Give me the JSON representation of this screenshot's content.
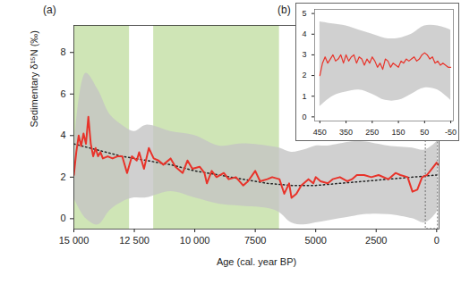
{
  "chart_data": [
    {
      "type": "line",
      "title": "(a)",
      "xlabel": "Age (cal. year BP)",
      "ylabel": "Sedimentary δ¹⁵N (‰)",
      "xlim": [
        15000,
        -100
      ],
      "ylim": [
        -0.5,
        9.3
      ],
      "xticks": [
        {
          "value": 15000,
          "label": "15 000"
        },
        {
          "value": 12500,
          "label": "12 500"
        },
        {
          "value": 10000,
          "label": "10 000"
        },
        {
          "value": 7500,
          "label": "7500"
        },
        {
          "value": 5000,
          "label": "5000"
        },
        {
          "value": 2500,
          "label": "2500"
        },
        {
          "value": 0,
          "label": "0"
        }
      ],
      "yticks": [
        0,
        2,
        4,
        6,
        8
      ],
      "shaded_regions": [
        {
          "x1": 15000,
          "x2": 12700,
          "color": "#cfe5b6"
        },
        {
          "x1": 11700,
          "x2": 6500,
          "color": "#cfe5b6"
        }
      ],
      "series": [
        {
          "type": "area",
          "color": "#c4c4c4",
          "x": [
            15000,
            14500,
            14000,
            13500,
            13000,
            12500,
            12000,
            11000,
            10000,
            9000,
            8000,
            7000,
            6500,
            6000,
            5500,
            5000,
            4500,
            4000,
            3500,
            3000,
            2000,
            1000,
            500,
            0,
            -50
          ],
          "upper": [
            3.2,
            7.0,
            6.2,
            5.0,
            4.5,
            4.2,
            4.5,
            4.2,
            4.0,
            3.5,
            3.6,
            3.5,
            3.4,
            3.2,
            3.3,
            3.5,
            3.5,
            3.6,
            3.7,
            3.7,
            3.5,
            3.4,
            3.3,
            3.7,
            3.8
          ],
          "lower": [
            1.0,
            0.0,
            -0.3,
            0.4,
            0.8,
            1.0,
            1.0,
            1.3,
            1.0,
            0.7,
            0.6,
            0.5,
            0.3,
            -0.2,
            -0.3,
            -0.2,
            -0.1,
            0.0,
            0.1,
            0.2,
            0.2,
            0.0,
            -0.2,
            0.3,
            0.5
          ]
        },
        {
          "type": "line",
          "color": "#222222",
          "line_style": "dotted",
          "x": [
            15000,
            14000,
            13000,
            12000,
            11000,
            10000,
            9000,
            8000,
            7000,
            6000,
            5000,
            4000,
            3000,
            2000,
            1000,
            0
          ],
          "values": [
            3.6,
            3.3,
            3.0,
            2.8,
            2.6,
            2.3,
            2.1,
            1.9,
            1.7,
            1.6,
            1.6,
            1.7,
            1.8,
            1.9,
            2.0,
            2.1
          ]
        },
        {
          "type": "line",
          "color": "#e8332a",
          "line_style": "solid",
          "x": [
            15000,
            14900,
            14800,
            14700,
            14600,
            14500,
            14400,
            14300,
            14200,
            14100,
            14000,
            13900,
            13800,
            13600,
            13400,
            13200,
            13000,
            12800,
            12600,
            12400,
            12300,
            12100,
            11900,
            11700,
            11500,
            11300,
            11000,
            10800,
            10500,
            10300,
            10100,
            9800,
            9600,
            9500,
            9300,
            9100,
            8800,
            8600,
            8300,
            8000,
            7800,
            7500,
            7300,
            7000,
            6800,
            6500,
            6300,
            6100,
            6000,
            5800,
            5600,
            5300,
            5100,
            5000,
            4800,
            4500,
            4300,
            4000,
            3700,
            3500,
            3300,
            3000,
            2700,
            2400,
            2000,
            1700,
            1500,
            1200,
            1000,
            800,
            600,
            400,
            200,
            0,
            -50
          ],
          "values": [
            2.1,
            3.2,
            4.0,
            3.5,
            4.1,
            3.6,
            4.9,
            3.6,
            3.0,
            3.4,
            3.0,
            3.2,
            2.9,
            3.0,
            2.9,
            3.0,
            3.0,
            2.2,
            3.0,
            2.8,
            3.2,
            2.4,
            3.4,
            2.9,
            2.8,
            2.6,
            2.9,
            2.5,
            2.2,
            2.8,
            2.4,
            2.5,
            2.2,
            1.7,
            2.3,
            2.0,
            2.2,
            1.9,
            2.0,
            1.6,
            1.8,
            2.3,
            1.8,
            1.9,
            2.0,
            1.9,
            1.2,
            1.7,
            1.0,
            1.2,
            1.6,
            1.9,
            1.7,
            2.0,
            1.8,
            1.7,
            1.9,
            2.0,
            1.8,
            1.9,
            2.1,
            2.1,
            2.0,
            2.1,
            1.9,
            2.2,
            2.1,
            2.0,
            1.3,
            1.4,
            2.0,
            2.1,
            2.4,
            2.7,
            2.6
          ]
        }
      ]
    },
    {
      "type": "line",
      "title": "(b)",
      "xlim": [
        470,
        -60
      ],
      "ylim": [
        -0.2,
        5.2
      ],
      "xticks": [
        450,
        350,
        250,
        150,
        50,
        -50
      ],
      "yticks": [
        0,
        1,
        2,
        3,
        4,
        5
      ],
      "series": [
        {
          "type": "area",
          "color": "#c4c4c4",
          "x": [
            450,
            400,
            350,
            300,
            250,
            200,
            150,
            100,
            50,
            0,
            -50
          ],
          "upper": [
            4.6,
            4.5,
            4.4,
            4.2,
            4.0,
            3.8,
            3.8,
            4.0,
            4.4,
            4.4,
            4.2
          ],
          "lower": [
            0.5,
            1.0,
            1.2,
            1.3,
            1.1,
            0.8,
            0.8,
            1.1,
            1.4,
            1.3,
            0.8
          ]
        },
        {
          "type": "line",
          "color": "#e8332a",
          "line_style": "solid",
          "x": [
            450,
            440,
            430,
            420,
            410,
            400,
            390,
            380,
            370,
            360,
            350,
            340,
            330,
            320,
            310,
            300,
            290,
            280,
            270,
            260,
            250,
            240,
            230,
            220,
            210,
            200,
            190,
            180,
            170,
            160,
            150,
            140,
            130,
            120,
            110,
            100,
            90,
            80,
            70,
            60,
            50,
            40,
            30,
            20,
            10,
            0,
            -10,
            -20,
            -30,
            -40,
            -50
          ],
          "values": [
            2.0,
            2.6,
            2.9,
            2.6,
            2.8,
            3.0,
            2.7,
            2.8,
            3.0,
            2.6,
            3.0,
            2.7,
            2.9,
            3.0,
            2.6,
            2.9,
            2.8,
            2.5,
            2.8,
            2.6,
            2.9,
            2.7,
            2.4,
            2.6,
            2.3,
            2.8,
            2.7,
            2.4,
            2.6,
            2.5,
            2.4,
            2.7,
            2.6,
            2.8,
            2.7,
            2.8,
            2.9,
            2.7,
            2.8,
            3.0,
            3.1,
            3.0,
            2.8,
            2.9,
            2.6,
            2.7,
            2.5,
            2.6,
            2.5,
            2.4,
            2.4
          ]
        }
      ]
    }
  ]
}
